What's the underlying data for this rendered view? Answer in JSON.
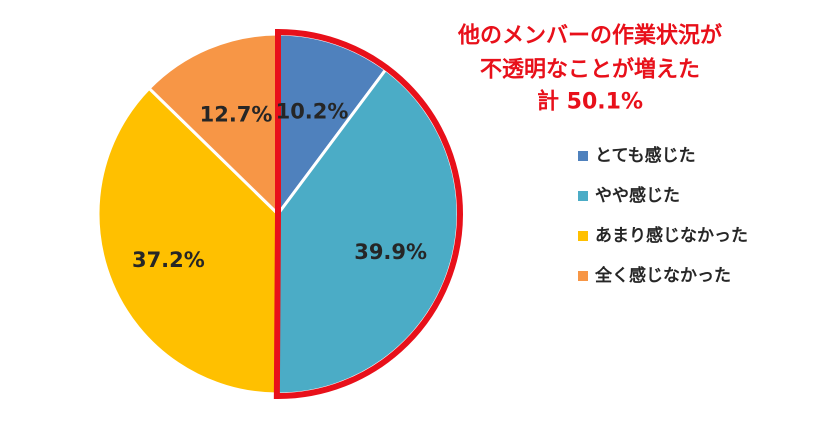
{
  "chart_data": {
    "type": "pie",
    "categories": [
      "とても感じた",
      "やや感じた",
      "あまり感じなかった",
      "全く感じなかった"
    ],
    "values": [
      10.2,
      39.9,
      37.2,
      12.7
    ],
    "value_labels": [
      "10.2%",
      "39.9%",
      "37.2%",
      "12.7%"
    ],
    "colors": [
      "#4f81bd",
      "#4bacc6",
      "#ffc000",
      "#f79646"
    ],
    "start": "12 o'clock",
    "direction": "clockwise",
    "legend_position": "right",
    "highlight": {
      "categories": [
        "とても感じた",
        "やや感じた"
      ],
      "outline_color": "#e8101a",
      "annotation_lines": [
        "他のメンバーの作業状況が",
        "不透明なことが増えた",
        "計 50.1%"
      ],
      "annotation_color": "#e8101a"
    }
  }
}
